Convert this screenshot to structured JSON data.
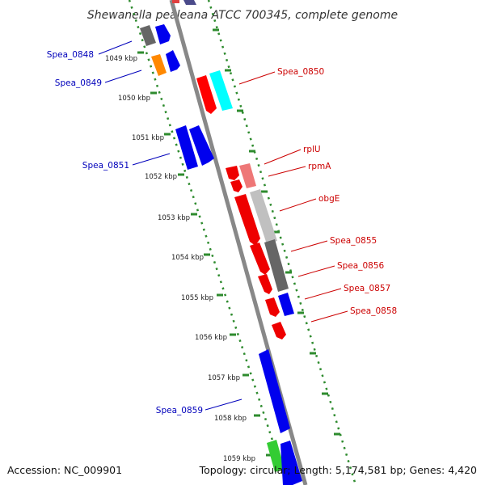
{
  "title": "Shewanella pealeana ATCC 700345, complete genome",
  "footer": {
    "accession": "Accession: NC_009901",
    "summary": "Topology: circular; Length: 5,174,581 bp; Genes: 4,420"
  },
  "colors": {
    "backbone": "#888888",
    "tick": "#2e8b2e",
    "forward_label": "#0000bb",
    "reverse_label": "#cc0000"
  },
  "scale_labels": [
    "1049 kbp",
    "1050 kbp",
    "1051 kbp",
    "1052 kbp",
    "1053 kbp",
    "1054 kbp",
    "1055 kbp",
    "1056 kbp",
    "1057 kbp",
    "1058 kbp",
    "1059 kbp"
  ],
  "gene_labels": [
    {
      "text": "Spea_0848",
      "strand": "forward"
    },
    {
      "text": "Spea_0849",
      "strand": "forward"
    },
    {
      "text": "Spea_0851",
      "strand": "forward"
    },
    {
      "text": "Spea_0859",
      "strand": "forward"
    },
    {
      "text": "Spea_0850",
      "strand": "reverse"
    },
    {
      "text": "rplU",
      "strand": "reverse"
    },
    {
      "text": "rpmA",
      "strand": "reverse"
    },
    {
      "text": "obgE",
      "strand": "reverse"
    },
    {
      "text": "Spea_0855",
      "strand": "reverse"
    },
    {
      "text": "Spea_0856",
      "strand": "reverse"
    },
    {
      "text": "Spea_0857",
      "strand": "reverse"
    },
    {
      "text": "Spea_0858",
      "strand": "reverse"
    }
  ]
}
